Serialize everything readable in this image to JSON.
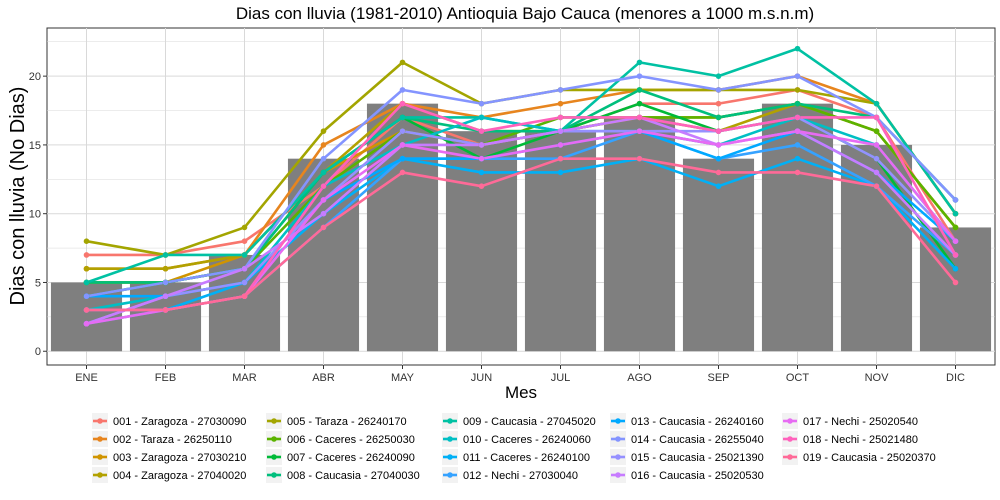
{
  "chart_data": {
    "type": "bar+line",
    "title": "Dias con lluvia (1981-2010) Antioquia Bajo Cauca (menores a 1000 m.s.n.m)",
    "xlabel": "Mes",
    "ylabel": "Dias con lluvia (No Dias)",
    "categories": [
      "ENE",
      "FEB",
      "MAR",
      "ABR",
      "MAY",
      "JUN",
      "JUL",
      "AGO",
      "SEP",
      "OCT",
      "NOV",
      "DIC"
    ],
    "ylim": [
      -1,
      23.5
    ],
    "yticks": [
      0,
      5,
      10,
      15,
      20
    ],
    "grid": true,
    "legend_position": "bottom",
    "bar_color": "#7f7f7f",
    "bars": [
      5,
      5,
      7,
      14,
      18,
      16,
      16,
      17,
      14,
      18,
      15,
      9
    ],
    "series": [
      {
        "name": "001 - Zaragoza - 27030090",
        "color": "#F8766D",
        "values": [
          7,
          7,
          8,
          12,
          17,
          15,
          16,
          18,
          18,
          19,
          17,
          8
        ]
      },
      {
        "name": "002 - Taraza - 26250110",
        "color": "#E7851E",
        "values": [
          6,
          6,
          7,
          15,
          18,
          17,
          18,
          19,
          19,
          20,
          18,
          10
        ]
      },
      {
        "name": "003 - Zaragoza - 27030210",
        "color": "#D09400",
        "values": [
          5,
          5,
          7,
          13,
          16,
          15,
          16,
          17,
          17,
          18,
          16,
          9
        ]
      },
      {
        "name": "004 - Zaragoza - 27040020",
        "color": "#B2A100",
        "values": [
          6,
          6,
          7,
          13,
          18,
          16,
          16,
          17,
          16,
          18,
          16,
          9
        ]
      },
      {
        "name": "005 - Taraza - 26240170",
        "color": "#A3A500",
        "values": [
          8,
          7,
          9,
          16,
          21,
          18,
          19,
          19,
          19,
          19,
          18,
          10
        ]
      },
      {
        "name": "006 - Caceres - 26250030",
        "color": "#5BB300",
        "values": [
          5,
          5,
          6,
          12,
          16,
          15,
          17,
          17,
          17,
          18,
          16,
          9
        ]
      },
      {
        "name": "007 - Caceres - 26240090",
        "color": "#00BA38",
        "values": [
          4,
          5,
          6,
          13,
          17,
          14,
          16,
          18,
          16,
          17,
          14,
          6
        ]
      },
      {
        "name": "008 - Caucasia - 27040030",
        "color": "#00BF7D",
        "values": [
          5,
          5,
          6,
          13,
          17,
          16,
          16,
          19,
          17,
          18,
          17,
          11
        ]
      },
      {
        "name": "009 - Caucasia - 27045020",
        "color": "#00C1A3",
        "values": [
          5,
          7,
          7,
          13,
          17,
          17,
          16,
          21,
          20,
          22,
          18,
          10
        ]
      },
      {
        "name": "010 - Caceres - 26240060",
        "color": "#00BFC4",
        "values": [
          3,
          4,
          5,
          12,
          15,
          17,
          16,
          16,
          15,
          17,
          15,
          8
        ]
      },
      {
        "name": "011 - Caceres - 26240100",
        "color": "#00B0F6",
        "values": [
          3,
          3,
          5,
          10,
          14,
          13,
          13,
          14,
          12,
          14,
          12,
          6
        ]
      },
      {
        "name": "012 - Nechi - 27030040",
        "color": "#35A2FF",
        "values": [
          2,
          3,
          4,
          9,
          14,
          14,
          14,
          16,
          14,
          15,
          12,
          7
        ]
      },
      {
        "name": "013 - Caucasia - 26240160",
        "color": "#00A9FF",
        "values": [
          4,
          4,
          5,
          11,
          14,
          14,
          15,
          16,
          14,
          16,
          13,
          8
        ]
      },
      {
        "name": "014 - Caucasia - 26255040",
        "color": "#8494FF",
        "values": [
          4,
          5,
          6,
          14,
          19,
          18,
          19,
          20,
          19,
          20,
          17,
          11
        ]
      },
      {
        "name": "015 - Caucasia - 25021390",
        "color": "#9590FF",
        "values": [
          2,
          4,
          5,
          11,
          16,
          15,
          16,
          16,
          16,
          17,
          14,
          8
        ]
      },
      {
        "name": "016 - Caucasia - 25020530",
        "color": "#C77CFF",
        "values": [
          2,
          4,
          6,
          10,
          15,
          15,
          16,
          17,
          15,
          16,
          13,
          7
        ]
      },
      {
        "name": "017 - Nechi - 25020540",
        "color": "#E76BF3",
        "values": [
          2,
          3,
          4,
          11,
          15,
          14,
          15,
          16,
          15,
          16,
          15,
          8
        ]
      },
      {
        "name": "018 - Nechi - 25021480",
        "color": "#FF62BC",
        "values": [
          3,
          3,
          4,
          12,
          18,
          16,
          17,
          17,
          16,
          17,
          17,
          7
        ]
      },
      {
        "name": "019 - Caucasia - 25020370",
        "color": "#FF6A98",
        "values": [
          3,
          3,
          4,
          9,
          13,
          12,
          14,
          14,
          13,
          13,
          12,
          5
        ]
      }
    ]
  }
}
